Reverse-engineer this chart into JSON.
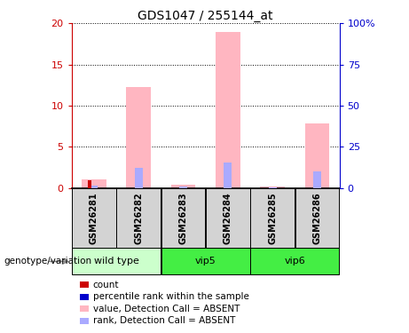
{
  "title": "GDS1047 / 255144_at",
  "samples": [
    "GSM26281",
    "GSM26282",
    "GSM26283",
    "GSM26284",
    "GSM26285",
    "GSM26286"
  ],
  "pink_bar_values": [
    1.1,
    12.3,
    0.4,
    19.0,
    0.15,
    7.8
  ],
  "blue_bar_values": [
    0.3,
    2.5,
    0.15,
    3.1,
    0.1,
    2.0
  ],
  "red_bar_values": [
    1.0,
    0.0,
    0.0,
    0.0,
    0.0,
    0.0
  ],
  "ylim_left": [
    0,
    20
  ],
  "ylim_right": [
    0,
    100
  ],
  "yticks_left": [
    0,
    5,
    10,
    15,
    20
  ],
  "yticks_right": [
    0,
    25,
    50,
    75,
    100
  ],
  "ytick_labels_right": [
    "0",
    "25",
    "50",
    "75",
    "100%"
  ],
  "pink_color": "#FFB6C1",
  "blue_bar_color": "#AAAAFF",
  "red_color": "#CC0000",
  "blue_color": "#0000CC",
  "left_axis_color": "#CC0000",
  "right_axis_color": "#0000CC",
  "group_info": [
    {
      "label": "wild type",
      "start": 0,
      "end": 1,
      "color": "#CCFFCC"
    },
    {
      "label": "vip5",
      "start": 2,
      "end": 3,
      "color": "#44EE44"
    },
    {
      "label": "vip6",
      "start": 4,
      "end": 5,
      "color": "#44EE44"
    }
  ],
  "sample_box_color": "#D3D3D3",
  "genotype_label": "genotype/variation",
  "legend_items": [
    {
      "color": "#CC0000",
      "label": "count"
    },
    {
      "color": "#0000CC",
      "label": "percentile rank within the sample"
    },
    {
      "color": "#FFB6C1",
      "label": "value, Detection Call = ABSENT"
    },
    {
      "color": "#AAAAFF",
      "label": "rank, Detection Call = ABSENT"
    }
  ]
}
